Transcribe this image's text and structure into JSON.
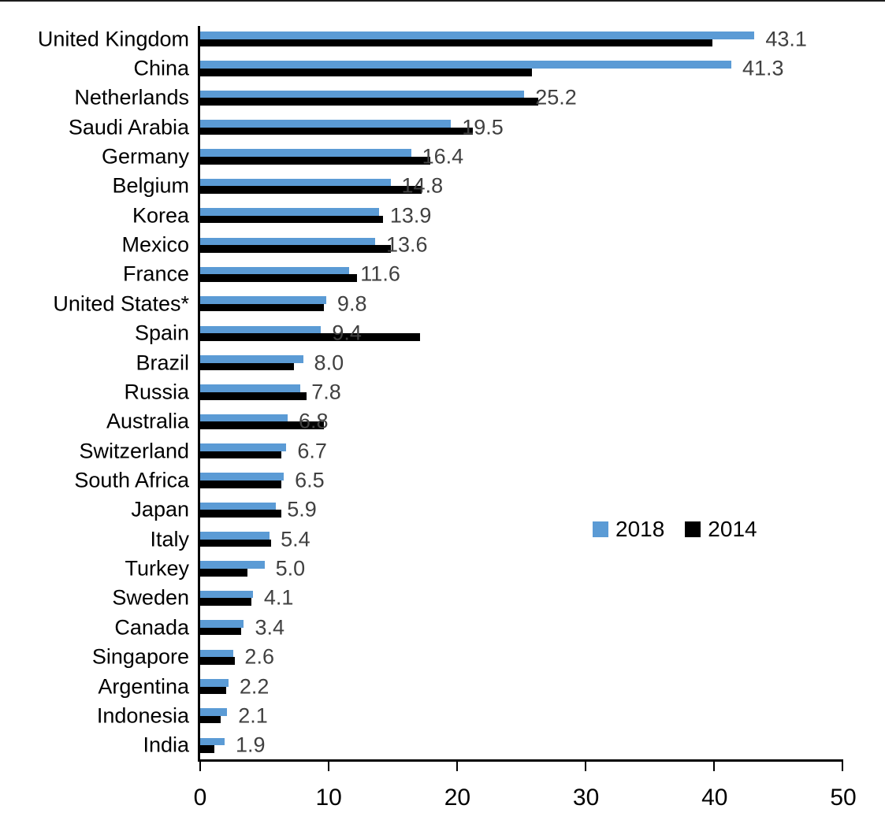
{
  "chart_data": {
    "type": "bar",
    "orientation": "horizontal",
    "title": "",
    "xlabel": "",
    "ylabel": "",
    "xlim": [
      0,
      50
    ],
    "x_ticks": [
      0,
      10,
      20,
      30,
      40,
      50
    ],
    "grid": false,
    "legend_position": "center-right",
    "value_label_color": "#404040",
    "categories": [
      "United Kingdom",
      "China",
      "Netherlands",
      "Saudi Arabia",
      "Germany",
      "Belgium",
      "Korea",
      "Mexico",
      "France",
      "United States*",
      "Spain",
      "Brazil",
      "Russia",
      "Australia",
      "Switzerland",
      "South Africa",
      "Japan",
      "Italy",
      "Turkey",
      "Sweden",
      "Canada",
      "Singapore",
      "Argentina",
      "Indonesia",
      "India"
    ],
    "series": [
      {
        "name": "2018",
        "color": "#5B9BD5",
        "values": [
          43.1,
          41.3,
          25.2,
          19.5,
          16.4,
          14.8,
          13.9,
          13.6,
          11.6,
          9.8,
          9.4,
          8.0,
          7.8,
          6.8,
          6.7,
          6.5,
          5.9,
          5.4,
          5.0,
          4.1,
          3.4,
          2.6,
          2.2,
          2.1,
          1.9
        ]
      },
      {
        "name": "2014",
        "color": "#000000",
        "values": [
          39.8,
          25.8,
          26.3,
          21.2,
          17.9,
          17.2,
          14.2,
          14.8,
          12.2,
          9.6,
          17.1,
          7.3,
          8.3,
          9.6,
          6.3,
          6.3,
          6.3,
          5.5,
          3.7,
          4.0,
          3.2,
          2.7,
          2.0,
          1.6,
          1.1
        ]
      }
    ],
    "data_labels": {
      "series": "2018",
      "values": [
        "43.1",
        "41.3",
        "25.2",
        "19.5",
        "16.4",
        "14.8",
        "13.9",
        "13.6",
        "11.6",
        "9.8",
        "9.4",
        "8.0",
        "7.8",
        "6.8",
        "6.7",
        "6.5",
        "5.9",
        "5.4",
        "5.0",
        "4.1",
        "3.4",
        "2.6",
        "2.2",
        "2.1",
        "1.9"
      ]
    }
  }
}
